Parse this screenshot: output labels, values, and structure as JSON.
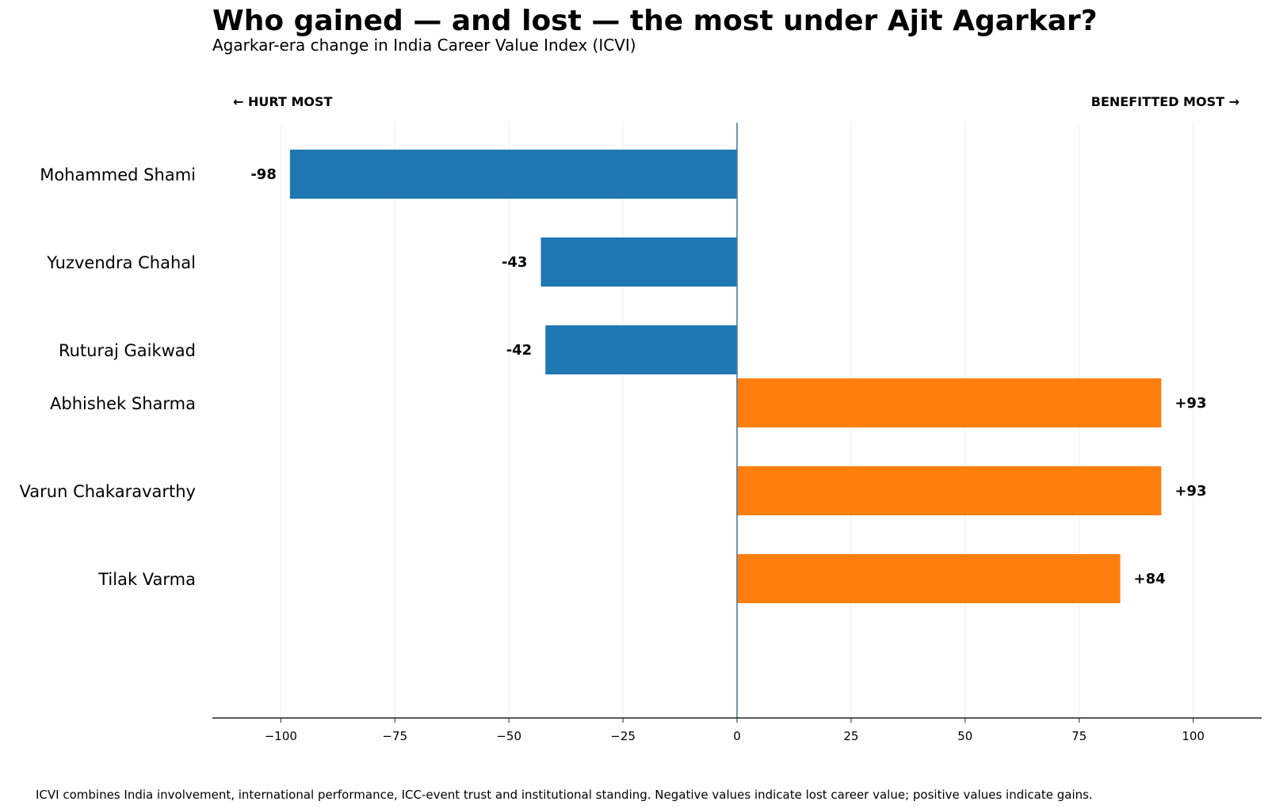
{
  "chart_data": {
    "type": "bar",
    "orientation": "horizontal",
    "title": "Who gained — and lost — the most under Ajit Agarkar?",
    "subtitle": "Agarkar-era change in India Career Value Index (ICVI)",
    "left_annotation": "← HURT MOST",
    "right_annotation": "BENEFITTED MOST →",
    "footnote": "ICVI combines India involvement, international performance, ICC-event trust and institutional standing. Negative values indicate lost career value; positive values indicate gains.",
    "xlim": [
      -115,
      115
    ],
    "xticks": [
      -100,
      -75,
      -50,
      -25,
      0,
      25,
      50,
      75,
      100
    ],
    "xtick_labels": [
      "−100",
      "−75",
      "−50",
      "−25",
      "0",
      "25",
      "50",
      "75",
      "100"
    ],
    "grid": "vertical",
    "groups": [
      {
        "categories": [
          "Mohammed Shami",
          "Yuzvendra Chahal",
          "Ruturaj Gaikwad"
        ],
        "values": [
          -98,
          -43,
          -42
        ],
        "value_labels": [
          "-98",
          "-43",
          "-42"
        ],
        "color": "#1f77b4"
      },
      {
        "categories": [
          "Abhishek Sharma",
          "Varun Chakaravarthy",
          "Tilak Varma"
        ],
        "values": [
          93,
          93,
          84
        ],
        "value_labels": [
          "+93",
          "+93",
          "+84"
        ],
        "color": "#ff7f0e"
      }
    ],
    "colors": {
      "hurt": "#1f77b4",
      "benefitted": "#ff7f0e",
      "zero_line": "#4a7a9c",
      "grid": "#eeeeee",
      "axis": "#222222"
    }
  }
}
